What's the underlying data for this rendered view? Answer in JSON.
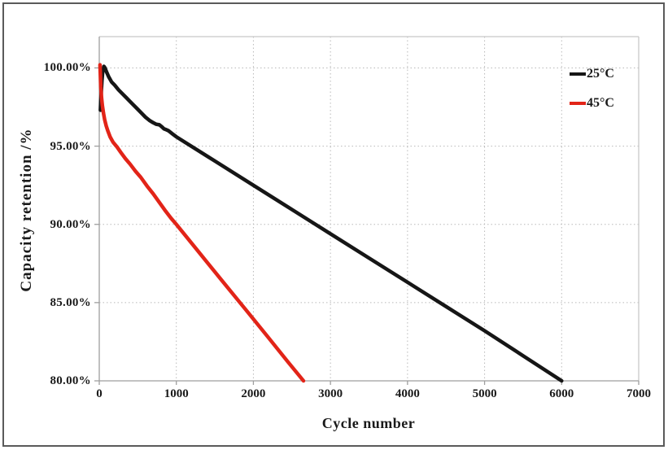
{
  "figure": {
    "background": "#ffffff",
    "outer_border_color": "#5a5a5a"
  },
  "colors": {
    "series_25c": "#161616",
    "series_45c": "#e22418",
    "gridline": "#b9b9b9",
    "axis_line": "#9e9e9e",
    "plot_border": "#c8c8c8",
    "text": "#1a1a1a"
  },
  "chart_data": {
    "type": "line",
    "title": "",
    "xlabel": "Cycle number",
    "ylabel": "Capacity retention /%",
    "xlim": [
      0,
      7000
    ],
    "ylim": [
      80,
      102
    ],
    "grid": "dotted",
    "legend_position": "top-right",
    "x_ticks": [
      {
        "value": 0,
        "label": "0"
      },
      {
        "value": 1000,
        "label": "1000"
      },
      {
        "value": 2000,
        "label": "2000"
      },
      {
        "value": 3000,
        "label": "3000"
      },
      {
        "value": 4000,
        "label": "4000"
      },
      {
        "value": 5000,
        "label": "5000"
      },
      {
        "value": 6000,
        "label": "6000"
      },
      {
        "value": 7000,
        "label": "7000"
      }
    ],
    "y_ticks": [
      {
        "value": 100,
        "label": "100.00%"
      },
      {
        "value": 95,
        "label": "95.00%"
      },
      {
        "value": 90,
        "label": "90.00%"
      },
      {
        "value": 85,
        "label": "85.00%"
      },
      {
        "value": 80,
        "label": "80.00%"
      }
    ],
    "series": [
      {
        "name": "25°C",
        "color": "#161616",
        "points": [
          [
            15,
            97.3
          ],
          [
            25,
            98.4
          ],
          [
            35,
            99.2
          ],
          [
            45,
            99.8
          ],
          [
            60,
            100.1
          ],
          [
            75,
            100.0
          ],
          [
            90,
            99.8
          ],
          [
            120,
            99.45
          ],
          [
            160,
            99.1
          ],
          [
            200,
            98.9
          ],
          [
            250,
            98.6
          ],
          [
            300,
            98.35
          ],
          [
            350,
            98.1
          ],
          [
            400,
            97.85
          ],
          [
            450,
            97.6
          ],
          [
            500,
            97.35
          ],
          [
            550,
            97.1
          ],
          [
            600,
            96.85
          ],
          [
            650,
            96.65
          ],
          [
            700,
            96.5
          ],
          [
            740,
            96.4
          ],
          [
            780,
            96.36
          ],
          [
            810,
            96.25
          ],
          [
            840,
            96.1
          ],
          [
            870,
            96.05
          ],
          [
            900,
            95.98
          ],
          [
            940,
            95.82
          ],
          [
            1000,
            95.6
          ],
          [
            1500,
            94.05
          ],
          [
            2000,
            92.5
          ],
          [
            2500,
            90.95
          ],
          [
            3000,
            89.4
          ],
          [
            3500,
            87.85
          ],
          [
            4000,
            86.3
          ],
          [
            4500,
            84.75
          ],
          [
            5000,
            83.2
          ],
          [
            5500,
            81.6
          ],
          [
            6000,
            80.0
          ]
        ]
      },
      {
        "name": "45°C",
        "color": "#e22418",
        "points": [
          [
            10,
            100.2
          ],
          [
            15,
            99.5
          ],
          [
            20,
            98.8
          ],
          [
            30,
            98.1
          ],
          [
            40,
            97.6
          ],
          [
            55,
            97.1
          ],
          [
            70,
            96.7
          ],
          [
            90,
            96.3
          ],
          [
            110,
            96.0
          ],
          [
            140,
            95.6
          ],
          [
            180,
            95.25
          ],
          [
            230,
            94.95
          ],
          [
            280,
            94.6
          ],
          [
            340,
            94.2
          ],
          [
            400,
            93.85
          ],
          [
            470,
            93.4
          ],
          [
            540,
            93.0
          ],
          [
            620,
            92.45
          ],
          [
            700,
            91.95
          ],
          [
            780,
            91.4
          ],
          [
            860,
            90.85
          ],
          [
            930,
            90.4
          ],
          [
            1000,
            90.0
          ],
          [
            1300,
            88.18
          ],
          [
            1600,
            86.36
          ],
          [
            1900,
            84.55
          ],
          [
            2200,
            82.73
          ],
          [
            2450,
            81.2
          ],
          [
            2650,
            80.0
          ]
        ]
      }
    ]
  }
}
